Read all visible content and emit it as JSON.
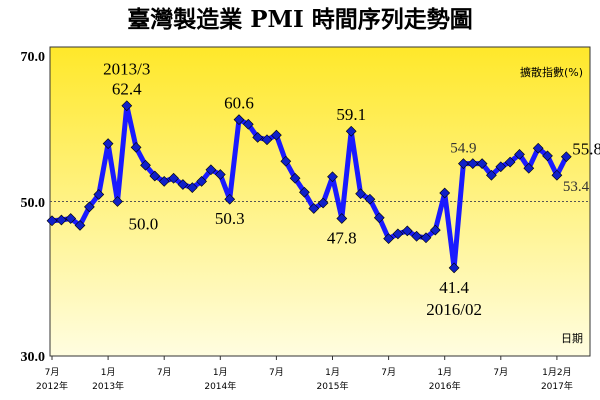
{
  "chart_data": {
    "type": "line",
    "title": "臺灣製造業 PMI 時間序列走勢圖",
    "ylabel": "擴散指數(%)",
    "xlabel": "日期",
    "ylim": [
      30,
      70
    ],
    "yticks": [
      "30.0",
      "50.0",
      "70.0"
    ],
    "xticks": [
      {
        "month": "7月",
        "year": "2012年",
        "index": 0
      },
      {
        "month": "1月",
        "year": "2013年",
        "index": 6
      },
      {
        "month": "7月",
        "year": "",
        "index": 12
      },
      {
        "month": "1月",
        "year": "2014年",
        "index": 18
      },
      {
        "month": "7月",
        "year": "",
        "index": 24
      },
      {
        "month": "1月",
        "year": "2015年",
        "index": 30
      },
      {
        "month": "7月",
        "year": "",
        "index": 36
      },
      {
        "month": "1月",
        "year": "2016年",
        "index": 42
      },
      {
        "month": "7月",
        "year": "",
        "index": 48
      },
      {
        "month": "1月2月",
        "year": "2017年",
        "index": 54
      }
    ],
    "x": [
      "2012/07",
      "2012/08",
      "2012/09",
      "2012/10",
      "2012/11",
      "2012/12",
      "2013/01",
      "2013/02",
      "2013/03",
      "2013/04",
      "2013/05",
      "2013/06",
      "2013/07",
      "2013/08",
      "2013/09",
      "2013/10",
      "2013/11",
      "2013/12",
      "2014/01",
      "2014/02",
      "2014/03",
      "2014/04",
      "2014/05",
      "2014/06",
      "2014/07",
      "2014/08",
      "2014/09",
      "2014/10",
      "2014/11",
      "2014/12",
      "2015/01",
      "2015/02",
      "2015/03",
      "2015/04",
      "2015/05",
      "2015/06",
      "2015/07",
      "2015/08",
      "2015/09",
      "2015/10",
      "2015/11",
      "2015/12",
      "2016/01",
      "2016/02",
      "2016/03",
      "2016/04",
      "2016/05",
      "2016/06",
      "2016/07",
      "2016/08",
      "2016/09",
      "2016/10",
      "2016/11",
      "2016/12",
      "2017/01",
      "2017/02"
    ],
    "values": [
      47.5,
      47.6,
      47.8,
      46.9,
      49.3,
      50.9,
      57.5,
      50.0,
      62.4,
      57.0,
      54.7,
      53.3,
      52.6,
      53.0,
      52.2,
      51.8,
      52.6,
      54.1,
      53.5,
      50.3,
      60.6,
      60.0,
      58.3,
      58.0,
      58.6,
      55.2,
      53.0,
      51.2,
      49.1,
      49.8,
      53.2,
      47.8,
      59.1,
      51.0,
      50.3,
      47.9,
      45.2,
      45.8,
      46.2,
      45.5,
      45.3,
      46.3,
      51.1,
      41.4,
      54.9,
      54.9,
      54.9,
      53.4,
      54.5,
      55.1,
      56.1,
      54.3,
      56.9,
      55.9,
      53.4,
      55.8
    ],
    "annotations": [
      {
        "text": "2013/3",
        "index": 8,
        "pos": "above-top"
      },
      {
        "text": "62.4",
        "index": 8,
        "pos": "above"
      },
      {
        "text": "50.0",
        "index": 7,
        "pos": "below-right"
      },
      {
        "text": "60.6",
        "index": 20,
        "pos": "above"
      },
      {
        "text": "50.3",
        "index": 19,
        "pos": "below"
      },
      {
        "text": "59.1",
        "index": 32,
        "pos": "above"
      },
      {
        "text": "47.8",
        "index": 31,
        "pos": "below"
      },
      {
        "text": "41.4",
        "index": 43,
        "pos": "below"
      },
      {
        "text": "2016/02",
        "index": 43,
        "pos": "below-2"
      },
      {
        "text": "54.9",
        "index": 44,
        "pos": "above-small"
      },
      {
        "text": "55.8",
        "index": 55,
        "pos": "right-above"
      },
      {
        "text": "53.4",
        "index": 54,
        "pos": "right-below"
      }
    ],
    "grid": false,
    "colors": {
      "line": "#1a1aff",
      "marker_fill": "#1020c8",
      "bg_top": "#ffe82a",
      "bg_bottom": "#fffde0",
      "ref_line": "#555555"
    }
  }
}
